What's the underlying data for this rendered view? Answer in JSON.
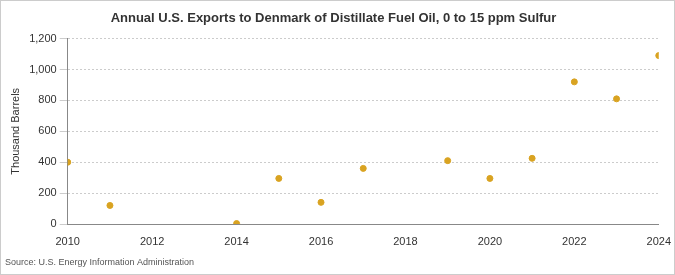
{
  "chart_data": {
    "type": "scatter",
    "title": "Annual U.S. Exports to Denmark of Distillate Fuel Oil, 0 to 15 ppm Sulfur",
    "y_label": "Thousand Barrels",
    "annotation": "Source: U.S. Energy Information Administration",
    "x": [
      2010,
      2011,
      2014,
      2015,
      2016,
      2017,
      2019,
      2020,
      2021,
      2022,
      2023,
      2024
    ],
    "values": [
      400,
      120,
      3,
      295,
      140,
      360,
      410,
      295,
      425,
      920,
      810,
      1090
    ],
    "color": "#d9a321",
    "marker": "circle",
    "xlim": [
      2010,
      2024
    ],
    "xticks": [
      2010,
      2012,
      2014,
      2016,
      2018,
      2020,
      2022,
      2024
    ],
    "ylim": [
      0,
      1200
    ],
    "yticks": [
      0,
      200,
      400,
      600,
      800,
      {
        "value": 1000,
        "label": "1,000"
      },
      {
        "value": 1200,
        "label": "1,200"
      }
    ],
    "grid": true
  }
}
